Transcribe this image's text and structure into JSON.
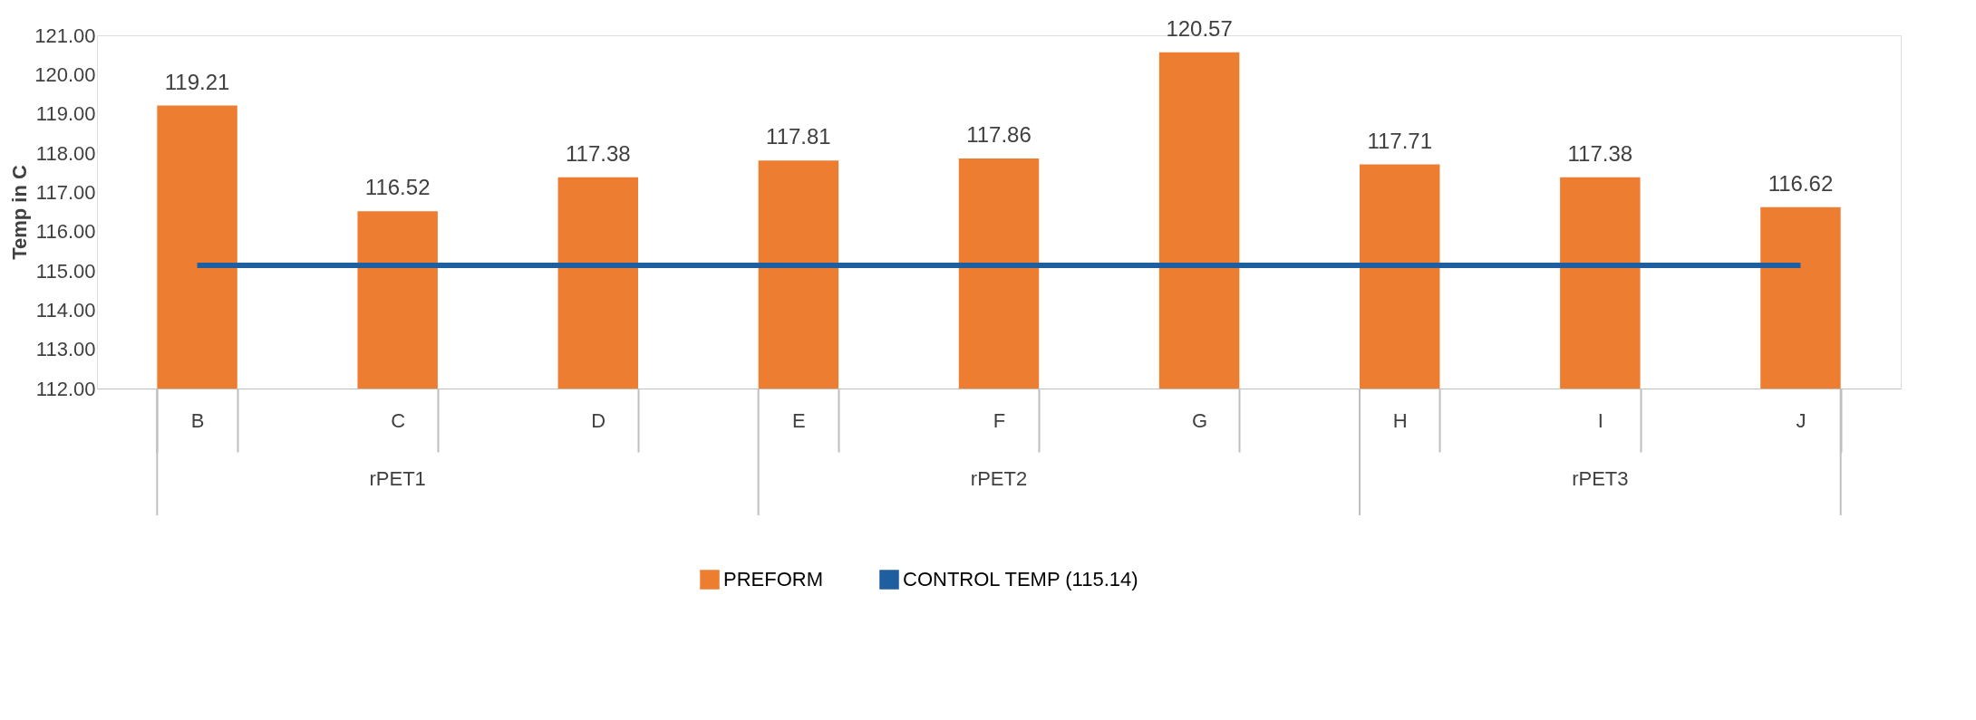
{
  "chart_data": {
    "type": "bar",
    "ylabel": "Temp in C",
    "categories": [
      "B",
      "C",
      "D",
      "E",
      "F",
      "G",
      "H",
      "I",
      "J"
    ],
    "series": [
      {
        "name": "PREFORM",
        "color": "#ed7d31",
        "values": [
          119.21,
          116.52,
          117.38,
          117.81,
          117.86,
          120.57,
          117.71,
          117.38,
          116.62
        ],
        "value_labels": [
          "119.21",
          "116.52",
          "117.38",
          "117.81",
          "117.86",
          "120.57",
          "117.71",
          "117.38",
          "116.62"
        ]
      },
      {
        "name": "CONTROL TEMP (115.14)",
        "type": "line",
        "color": "#1f5fa0",
        "values": [
          115.14,
          115.14,
          115.14,
          115.14,
          115.14,
          115.14,
          115.14,
          115.14,
          115.14
        ]
      }
    ],
    "ylim": [
      112,
      121
    ],
    "yticks": [
      {
        "value": 112,
        "label": "112.00"
      },
      {
        "value": 113,
        "label": "113.00"
      },
      {
        "value": 114,
        "label": "114.00"
      },
      {
        "value": 115,
        "label": "115.00"
      },
      {
        "value": 116,
        "label": "116.00"
      },
      {
        "value": 117,
        "label": "117.00"
      },
      {
        "value": 118,
        "label": "118.00"
      },
      {
        "value": 119,
        "label": "119.00"
      },
      {
        "value": 120,
        "label": "120.00"
      },
      {
        "value": 121,
        "label": "121.00"
      }
    ],
    "annotations": [
      "rPET1",
      "rPET2",
      "rPET3"
    ],
    "legend": "bottom",
    "grid": false
  }
}
